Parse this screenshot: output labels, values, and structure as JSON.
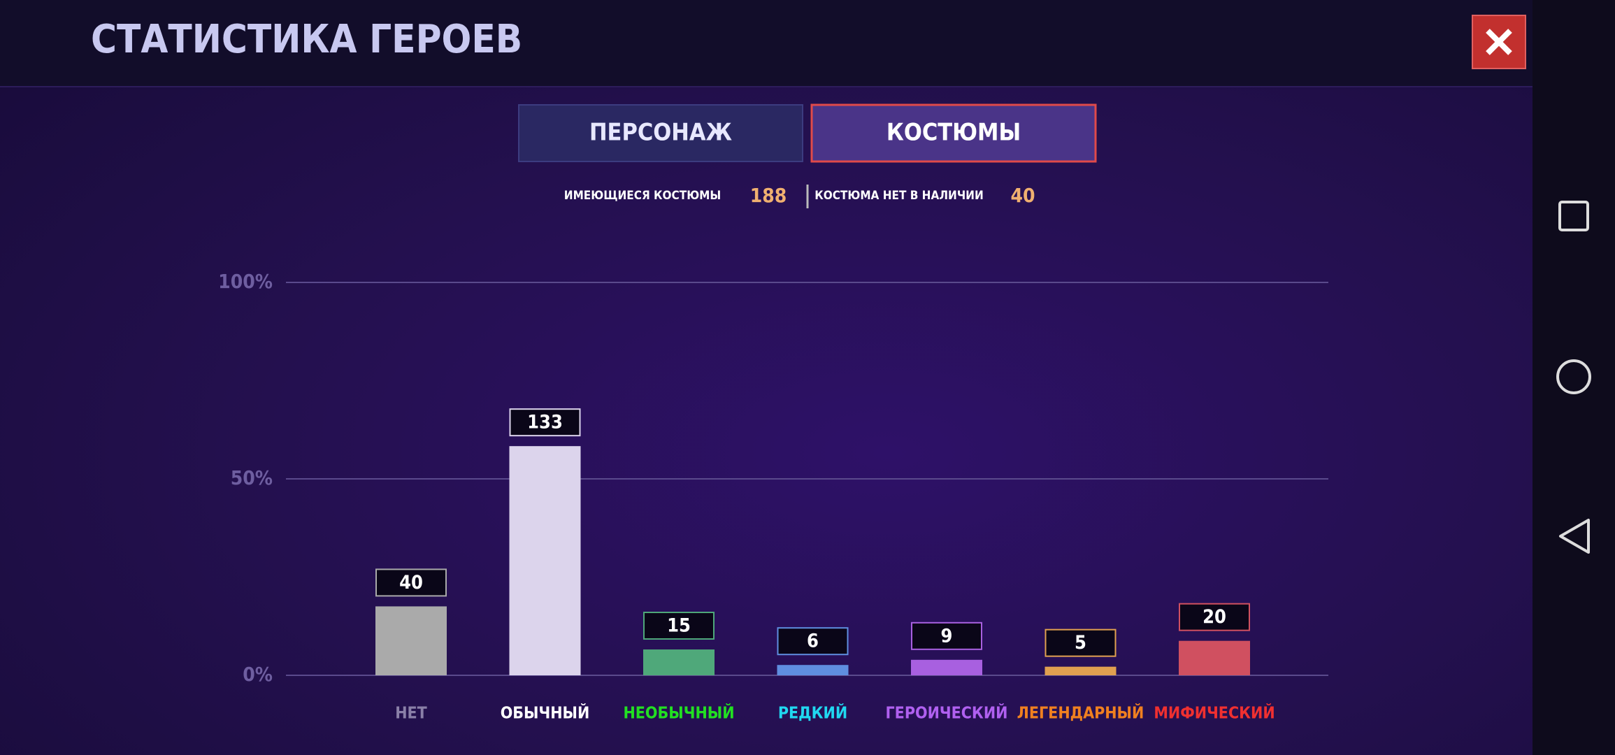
{
  "header": {
    "title": "СТАТИСТИКА ГЕРОЕВ"
  },
  "tabs": [
    "ПЕРСОНАЖ",
    "КОСТЮМЫ"
  ],
  "summary": {
    "owned_label": "ИМЕЮЩИЕСЯ КОСТЮМЫ",
    "owned": 188,
    "missing_label": "КОСТЮМА НЕТ В НАЛИЧИИ",
    "missing": 40
  },
  "chart_data": {
    "type": "bar",
    "categories": [
      "НЕТ",
      "ОБЫЧНЫЙ",
      "НЕОБЫЧНЫЙ",
      "РЕДКИЙ",
      "ГЕРОИЧЕСКИЙ",
      "ЛЕГЕНДАРНЫЙ",
      "МИФИЧЕСКИЙ"
    ],
    "values": [
      40,
      133,
      15,
      6,
      9,
      5,
      20
    ],
    "colors": [
      "#aaaaaa",
      "#dcd4ec",
      "#4fa87a",
      "#5f8ee0",
      "#a860e0",
      "#e0a050",
      "#d05060"
    ],
    "label_colors": [
      "#8a80a8",
      "#ffffff",
      "#22e022",
      "#20d8f0",
      "#b060f0",
      "#f08020",
      "#f03030"
    ],
    "ylim": [
      0,
      228
    ],
    "yticks": [
      {
        "value": 0,
        "label": "0%"
      },
      {
        "value": 114,
        "label": "50%"
      },
      {
        "value": 228,
        "label": "100%"
      }
    ],
    "grid": true
  }
}
